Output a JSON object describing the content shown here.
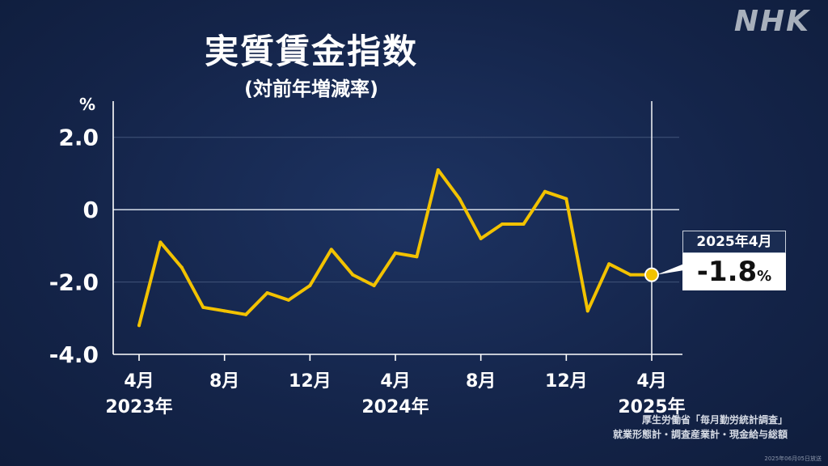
{
  "brand": "NHK",
  "title": "実質賃金指数",
  "subtitle": "(対前年増減率)",
  "callout": {
    "date": "2025年4月",
    "value": "-1.8",
    "unit": "%"
  },
  "source": {
    "line1": "厚生労働省「毎月勤労統計調査」",
    "line2": "就業形態計・調査産業計・現金給与総額"
  },
  "credit": "2025年06月05日放送",
  "colors": {
    "background": "#15264a",
    "line": "#f2c200",
    "grid": "#42557a"
  },
  "chart_data": {
    "type": "line",
    "ylabel": "%",
    "ylim": [
      -4.0,
      3.0
    ],
    "yticks": [
      {
        "value": 2.0,
        "label": "2.0"
      },
      {
        "value": 0,
        "label": "0"
      },
      {
        "value": -2.0,
        "label": "-2.0"
      },
      {
        "value": -4.0,
        "label": "-4.0"
      }
    ],
    "x": [
      "2023-04",
      "2023-05",
      "2023-06",
      "2023-07",
      "2023-08",
      "2023-09",
      "2023-10",
      "2023-11",
      "2023-12",
      "2024-01",
      "2024-02",
      "2024-03",
      "2024-04",
      "2024-05",
      "2024-06",
      "2024-07",
      "2024-08",
      "2024-09",
      "2024-10",
      "2024-11",
      "2024-12",
      "2025-01",
      "2025-02",
      "2025-03",
      "2025-04"
    ],
    "xticks": [
      {
        "x": "2023-04",
        "label": "4月",
        "year": "2023年"
      },
      {
        "x": "2023-08",
        "label": "8月",
        "year": ""
      },
      {
        "x": "2023-12",
        "label": "12月",
        "year": ""
      },
      {
        "x": "2024-04",
        "label": "4月",
        "year": "2024年"
      },
      {
        "x": "2024-08",
        "label": "8月",
        "year": ""
      },
      {
        "x": "2024-12",
        "label": "12月",
        "year": ""
      },
      {
        "x": "2025-04",
        "label": "4月",
        "year": "2025年"
      }
    ],
    "series": [
      {
        "values": [
          -3.2,
          -0.9,
          -1.6,
          -2.7,
          -2.8,
          -2.9,
          -2.3,
          -2.5,
          -2.1,
          -1.1,
          -1.8,
          -2.1,
          -1.2,
          -1.3,
          1.1,
          0.3,
          -0.8,
          -0.4,
          -0.4,
          0.5,
          0.3,
          -2.8,
          -1.5,
          -1.8,
          -1.8
        ]
      }
    ],
    "grid": true,
    "highlight": {
      "x": "2025-04",
      "value": -1.8
    }
  }
}
